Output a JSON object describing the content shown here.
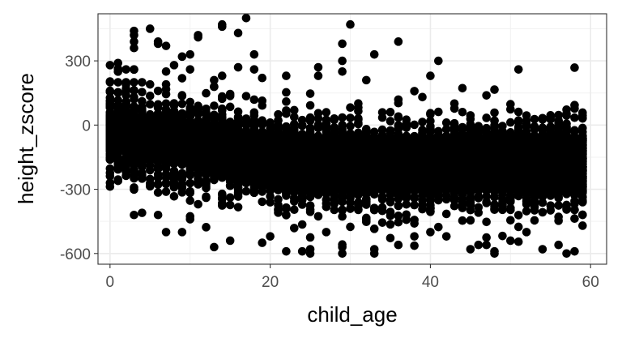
{
  "chart_data": {
    "type": "scatter",
    "title": "",
    "xlabel": "child_age",
    "ylabel": "height_zscore",
    "xlim": [
      -1.5,
      62
    ],
    "ylim": [
      -650,
      520
    ],
    "x_ticks": [
      0,
      20,
      40,
      60
    ],
    "y_ticks": [
      -600,
      -300,
      0,
      300
    ],
    "x_tick_labels": [
      "0",
      "20",
      "40",
      "60"
    ],
    "y_tick_labels": [
      "-600",
      "-300",
      "0",
      "300"
    ],
    "grid": true,
    "theme": "bw",
    "point_color": "#000000",
    "x_range": [
      0,
      59
    ],
    "core_band": {
      "at_x0": [
        -120,
        50
      ],
      "at_x59": [
        -310,
        -50
      ]
    },
    "outliers": [
      {
        "x": 0,
        "y": 200
      },
      {
        "x": 0,
        "y": 280
      },
      {
        "x": 1,
        "y": 290
      },
      {
        "x": 1,
        "y": 200
      },
      {
        "x": 2,
        "y": 260
      },
      {
        "x": 2,
        "y": 200
      },
      {
        "x": 3,
        "y": 440
      },
      {
        "x": 3,
        "y": 420
      },
      {
        "x": 3,
        "y": 390
      },
      {
        "x": 3,
        "y": 360
      },
      {
        "x": 3,
        "y": 260
      },
      {
        "x": 3,
        "y": 200
      },
      {
        "x": 4,
        "y": 200
      },
      {
        "x": 5,
        "y": 450
      },
      {
        "x": 5,
        "y": 190
      },
      {
        "x": 6,
        "y": 390
      },
      {
        "x": 6,
        "y": 380
      },
      {
        "x": 7,
        "y": 370
      },
      {
        "x": 7,
        "y": 250
      },
      {
        "x": 7,
        "y": 190
      },
      {
        "x": 8,
        "y": 280
      },
      {
        "x": 9,
        "y": 320
      },
      {
        "x": 10,
        "y": 330
      },
      {
        "x": 10,
        "y": 260
      },
      {
        "x": 11,
        "y": 420
      },
      {
        "x": 11,
        "y": 410
      },
      {
        "x": 13,
        "y": 210
      },
      {
        "x": 14,
        "y": 470
      },
      {
        "x": 14,
        "y": 460
      },
      {
        "x": 14,
        "y": 230
      },
      {
        "x": 16,
        "y": 430
      },
      {
        "x": 16,
        "y": 270
      },
      {
        "x": 17,
        "y": 500
      },
      {
        "x": 18,
        "y": 330
      },
      {
        "x": 18,
        "y": 260
      },
      {
        "x": 19,
        "y": 220
      },
      {
        "x": 22,
        "y": 230
      },
      {
        "x": 26,
        "y": 270
      },
      {
        "x": 26,
        "y": 230
      },
      {
        "x": 29,
        "y": 380
      },
      {
        "x": 29,
        "y": 300
      },
      {
        "x": 29,
        "y": 250
      },
      {
        "x": 30,
        "y": 470
      },
      {
        "x": 33,
        "y": 330
      },
      {
        "x": 32,
        "y": 210
      },
      {
        "x": 36,
        "y": 390
      },
      {
        "x": 40,
        "y": 230
      },
      {
        "x": 41,
        "y": 300
      },
      {
        "x": 51,
        "y": 260
      },
      {
        "x": 0,
        "y": -100
      },
      {
        "x": 3,
        "y": -420
      },
      {
        "x": 4,
        "y": -410
      },
      {
        "x": 6,
        "y": -420
      },
      {
        "x": 7,
        "y": -500
      },
      {
        "x": 9,
        "y": -500
      },
      {
        "x": 10,
        "y": -440
      },
      {
        "x": 13,
        "y": -570
      },
      {
        "x": 15,
        "y": -540
      },
      {
        "x": 19,
        "y": -550
      },
      {
        "x": 20,
        "y": -520
      },
      {
        "x": 22,
        "y": -590
      },
      {
        "x": 24,
        "y": -590
      },
      {
        "x": 25,
        "y": -600
      },
      {
        "x": 25,
        "y": -580
      },
      {
        "x": 27,
        "y": -500
      },
      {
        "x": 29,
        "y": -600
      },
      {
        "x": 29,
        "y": -570
      },
      {
        "x": 33,
        "y": -600
      },
      {
        "x": 33,
        "y": -580
      },
      {
        "x": 36,
        "y": -560
      },
      {
        "x": 38,
        "y": -520
      },
      {
        "x": 40,
        "y": -500
      },
      {
        "x": 42,
        "y": -520
      },
      {
        "x": 45,
        "y": -580
      },
      {
        "x": 46,
        "y": -560
      },
      {
        "x": 48,
        "y": -600
      },
      {
        "x": 48,
        "y": -590
      },
      {
        "x": 50,
        "y": -540
      },
      {
        "x": 52,
        "y": -500
      },
      {
        "x": 54,
        "y": -580
      },
      {
        "x": 56,
        "y": -560
      },
      {
        "x": 57,
        "y": -600
      },
      {
        "x": 58,
        "y": -590
      },
      {
        "x": 59,
        "y": -470
      }
    ]
  }
}
